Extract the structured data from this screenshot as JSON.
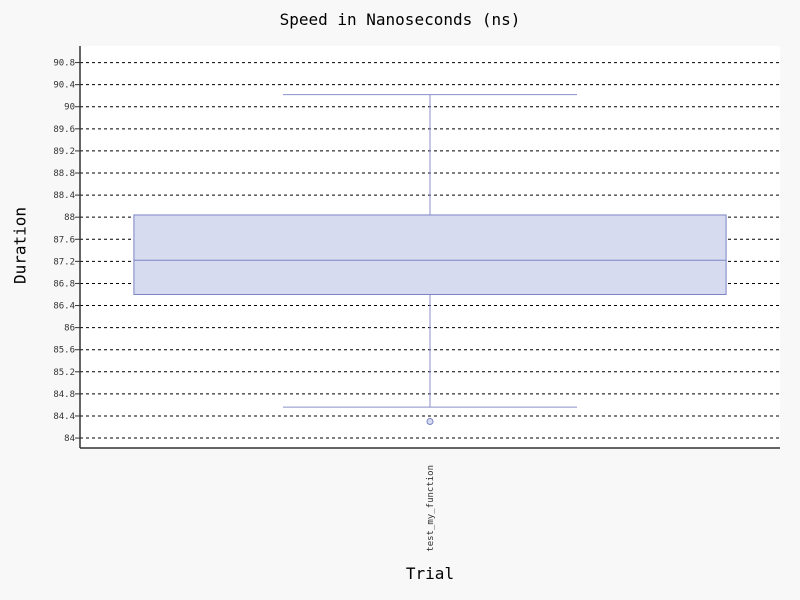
{
  "chart_data": {
    "type": "box",
    "title": "Speed in Nanoseconds (ns)",
    "xlabel": "Trial",
    "ylabel": "Duration",
    "ylim": [
      83.82,
      91.1
    ],
    "grid": true,
    "yticks": [
      "84",
      "84.4",
      "84.8",
      "85.2",
      "85.6",
      "86",
      "86.4",
      "86.8",
      "87.2",
      "87.6",
      "88",
      "88.4",
      "88.8",
      "89.2",
      "89.6",
      "90",
      "90.4",
      "90.8"
    ],
    "categories": [
      "test_my_function"
    ],
    "series": [
      {
        "whisker_low": 84.56,
        "q1": 86.6,
        "median": 87.22,
        "q3": 88.04,
        "whisker_high": 90.22,
        "outliers": [
          84.3
        ]
      }
    ]
  },
  "colors": {
    "box_fill": "#d7dbef",
    "box_stroke": "#7b84c5",
    "whisker": "#8a90c8",
    "grid": "#000000",
    "axis": "#333333",
    "plot_bg": "#ffffff",
    "page_bg": "#f8f8f8"
  }
}
